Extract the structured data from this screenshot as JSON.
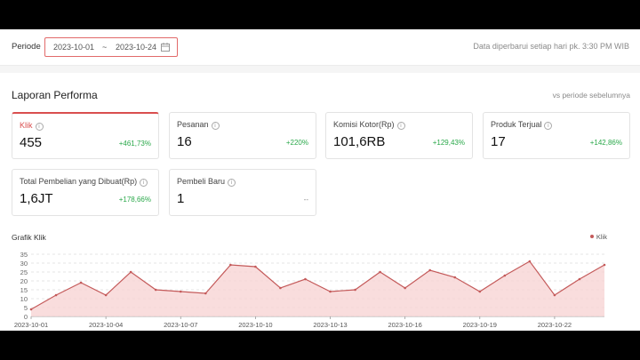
{
  "header": {
    "period_label": "Periode",
    "date_start": "2023-10-01",
    "date_separator": "~",
    "date_end": "2023-10-24",
    "updated_text": "Data diperbarui setiap hari pk. 3:30 PM WIB"
  },
  "report": {
    "title": "Laporan Performa",
    "compare_label": "vs periode sebelumnya"
  },
  "metrics": [
    {
      "label": "Klik",
      "value": "455",
      "change": "+461,73%"
    },
    {
      "label": "Pesanan",
      "value": "16",
      "change": "+220%"
    },
    {
      "label": "Komisi Kotor(Rp)",
      "value": "101,6RB",
      "change": "+129,43%"
    },
    {
      "label": "Produk Terjual",
      "value": "17",
      "change": "+142,86%"
    },
    {
      "label": "Total Pembelian yang Dibuat(Rp)",
      "value": "1,6JT",
      "change": "+178,66%"
    },
    {
      "label": "Pembeli Baru",
      "value": "1",
      "change": "--"
    }
  ],
  "chart_title": "Grafik Klik",
  "chart_data": {
    "type": "area",
    "legend": [
      "Klik"
    ],
    "legend_position": "top-right",
    "x": [
      "2023-10-01",
      "2023-10-02",
      "2023-10-03",
      "2023-10-04",
      "2023-10-05",
      "2023-10-06",
      "2023-10-07",
      "2023-10-08",
      "2023-10-09",
      "2023-10-10",
      "2023-10-11",
      "2023-10-12",
      "2023-10-13",
      "2023-10-14",
      "2023-10-15",
      "2023-10-16",
      "2023-10-17",
      "2023-10-18",
      "2023-10-19",
      "2023-10-20",
      "2023-10-21",
      "2023-10-22",
      "2023-10-23",
      "2023-10-24"
    ],
    "x_tick_labels": [
      "2023-10-01",
      "2023-10-04",
      "2023-10-07",
      "2023-10-10",
      "2023-10-13",
      "2023-10-16",
      "2023-10-19",
      "2023-10-22"
    ],
    "y_ticks": [
      0,
      5,
      10,
      15,
      20,
      25,
      30,
      35
    ],
    "ylim": [
      0,
      35
    ],
    "series": [
      {
        "name": "Klik",
        "values": [
          4,
          12,
          19,
          12,
          25,
          15,
          14,
          13,
          29,
          28,
          16,
          21,
          14,
          15,
          25,
          16,
          26,
          22,
          14,
          23,
          31,
          12,
          21,
          29
        ]
      }
    ],
    "grid": true,
    "colors": {
      "line": "#c45a5a",
      "fill": "#f8d4d4",
      "grid": "#dddddd"
    }
  }
}
